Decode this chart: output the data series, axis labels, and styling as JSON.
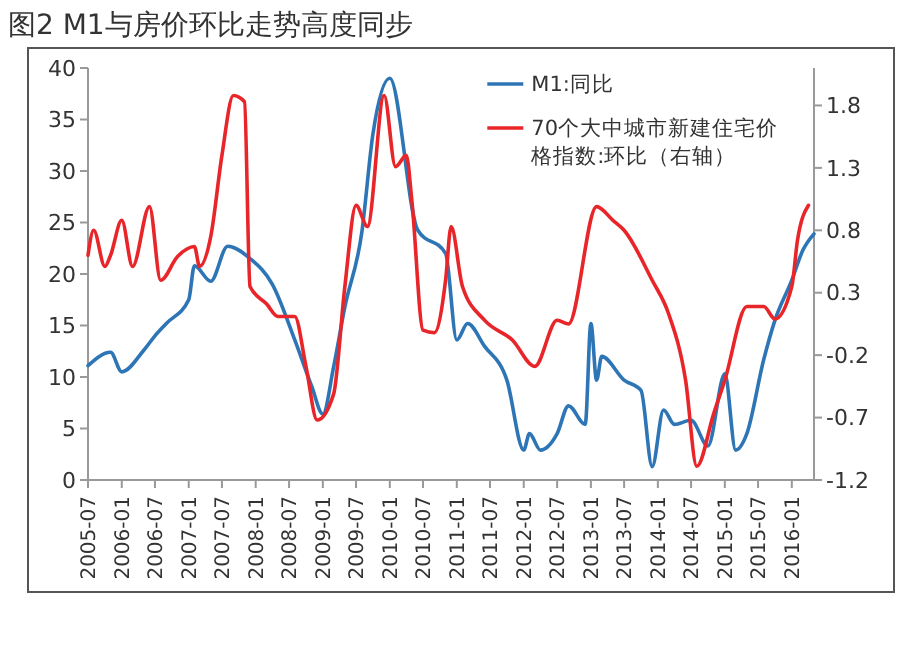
{
  "chart_data": {
    "type": "line",
    "title": "图2 M1与房价环比走势高度同步",
    "xlim": [
      "2005-07",
      "2016-05"
    ],
    "xticks": [
      "2005-07",
      "2006-01",
      "2006-07",
      "2007-01",
      "2007-07",
      "2008-01",
      "2008-07",
      "2009-01",
      "2009-07",
      "2010-01",
      "2010-07",
      "2011-01",
      "2011-07",
      "2012-01",
      "2012-07",
      "2013-01",
      "2013-07",
      "2014-01",
      "2014-07",
      "2015-01",
      "2015-07",
      "2016-01"
    ],
    "ylim": [
      0,
      40
    ],
    "yticks": [
      0,
      5,
      10,
      15,
      20,
      25,
      30,
      35,
      40
    ],
    "y2lim": [
      -1.2,
      2.1
    ],
    "y2ticks": [
      -1.2,
      -0.7,
      -0.2,
      0.3,
      0.8,
      1.3,
      1.8
    ],
    "legend": "top right",
    "grid": false,
    "series": [
      {
        "name": "M1:同比",
        "color": "#2e75b6",
        "x": [
          "2005-07",
          "2005-11",
          "2006-01",
          "2006-05",
          "2006-07",
          "2006-09",
          "2007-01",
          "2007-02",
          "2007-05",
          "2007-08",
          "2007-12",
          "2008-04",
          "2008-08",
          "2008-11",
          "2009-01",
          "2009-03",
          "2009-05",
          "2009-08",
          "2009-10",
          "2010-01",
          "2010-06",
          "2010-11",
          "2011-01",
          "2011-03",
          "2011-06",
          "2011-10",
          "2012-01",
          "2012-02",
          "2012-04",
          "2012-07",
          "2012-09",
          "2012-12",
          "2013-01",
          "2013-02",
          "2013-03",
          "2013-07",
          "2013-10",
          "2013-12",
          "2014-02",
          "2014-04",
          "2014-07",
          "2014-10",
          "2015-01",
          "2015-03",
          "2015-05",
          "2015-08",
          "2015-10",
          "2016-01",
          "2016-03",
          "2016-05"
        ],
        "values": [
          11.1,
          12.4,
          10.5,
          12.6,
          14,
          15.2,
          17.5,
          20.8,
          19.3,
          22.7,
          21.5,
          19,
          13.6,
          9.1,
          6.4,
          11,
          16.8,
          24,
          33.6,
          39,
          24.3,
          22,
          13.6,
          15.2,
          13,
          9.7,
          2.9,
          4.5,
          2.9,
          4.5,
          7.2,
          5.4,
          15.2,
          9.7,
          12,
          9.7,
          8.7,
          1.3,
          6.8,
          5.4,
          5.8,
          3.3,
          10.3,
          2.9,
          4.5,
          11.7,
          15.5,
          19.4,
          22.3,
          23.9
        ]
      },
      {
        "name": "70个大中城市新建住宅价格指数:环比（右轴）",
        "color": "#e8262a",
        "axis": "y2",
        "x": [
          "2005-07",
          "2005-08",
          "2005-10",
          "2005-11",
          "2006-01",
          "2006-03",
          "2006-06",
          "2006-08",
          "2006-11",
          "2007-02",
          "2007-03",
          "2007-05",
          "2007-07",
          "2007-09",
          "2007-11",
          "2007-12",
          "2008-03",
          "2008-05",
          "2008-08",
          "2008-10",
          "2008-12",
          "2009-03",
          "2009-05",
          "2009-07",
          "2009-09",
          "2009-12",
          "2010-02",
          "2010-04",
          "2010-05",
          "2010-07",
          "2010-09",
          "2010-11",
          "2010-12",
          "2011-02",
          "2011-06",
          "2011-11",
          "2012-03",
          "2012-07",
          "2012-09",
          "2013-02",
          "2013-05",
          "2013-07",
          "2013-12",
          "2014-03",
          "2014-06",
          "2014-08",
          "2014-11",
          "2015-01",
          "2015-05",
          "2015-08",
          "2015-10",
          "2016-01",
          "2016-02",
          "2016-04"
        ],
        "values": [
          0.6,
          0.8,
          0.51,
          0.6,
          0.88,
          0.51,
          0.99,
          0.4,
          0.59,
          0.67,
          0.51,
          0.75,
          1.4,
          1.88,
          1.83,
          0.35,
          0.21,
          0.11,
          0.11,
          -0.29,
          -0.72,
          -0.51,
          0.35,
          1.0,
          0.83,
          1.88,
          1.31,
          1.4,
          1.04,
          0.0,
          -0.02,
          0.4,
          0.83,
          0.35,
          0.08,
          -0.08,
          -0.29,
          0.08,
          0.05,
          0.99,
          0.88,
          0.8,
          0.4,
          0.13,
          -0.4,
          -1.09,
          -0.67,
          -0.4,
          0.19,
          0.19,
          0.09,
          0.35,
          0.72,
          1.0
        ]
      }
    ]
  }
}
